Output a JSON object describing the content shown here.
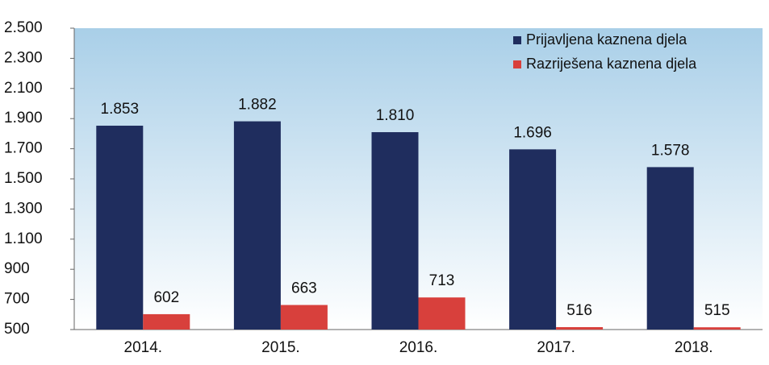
{
  "chart_data": {
    "type": "bar",
    "categories": [
      "2014.",
      "2015.",
      "2016.",
      "2017.",
      "2018."
    ],
    "series": [
      {
        "name": "Prijavljena kaznena djela",
        "color": "#1f2d5e",
        "values": [
          1853,
          1882,
          1810,
          1696,
          1578
        ],
        "value_labels": [
          "1.853",
          "1.882",
          "1.810",
          "1.696",
          "1.578"
        ]
      },
      {
        "name": "Razriješena kaznena djela",
        "color": "#d8403c",
        "values": [
          602,
          663,
          713,
          516,
          515
        ],
        "value_labels": [
          "602",
          "663",
          "713",
          "516",
          "515"
        ]
      }
    ],
    "ylim": [
      500,
      2500
    ],
    "yticks": [
      {
        "value": 500,
        "label": "500"
      },
      {
        "value": 700,
        "label": "700"
      },
      {
        "value": 900,
        "label": "900"
      },
      {
        "value": 1100,
        "label": "1.100"
      },
      {
        "value": 1300,
        "label": "1.300"
      },
      {
        "value": 1500,
        "label": "1.500"
      },
      {
        "value": 1700,
        "label": "1.700"
      },
      {
        "value": 1900,
        "label": "1.900"
      },
      {
        "value": 2100,
        "label": "2.100"
      },
      {
        "value": 2300,
        "label": "2.300"
      },
      {
        "value": 2500,
        "label": "2.500"
      }
    ],
    "grid": false,
    "legend": "top-right"
  }
}
